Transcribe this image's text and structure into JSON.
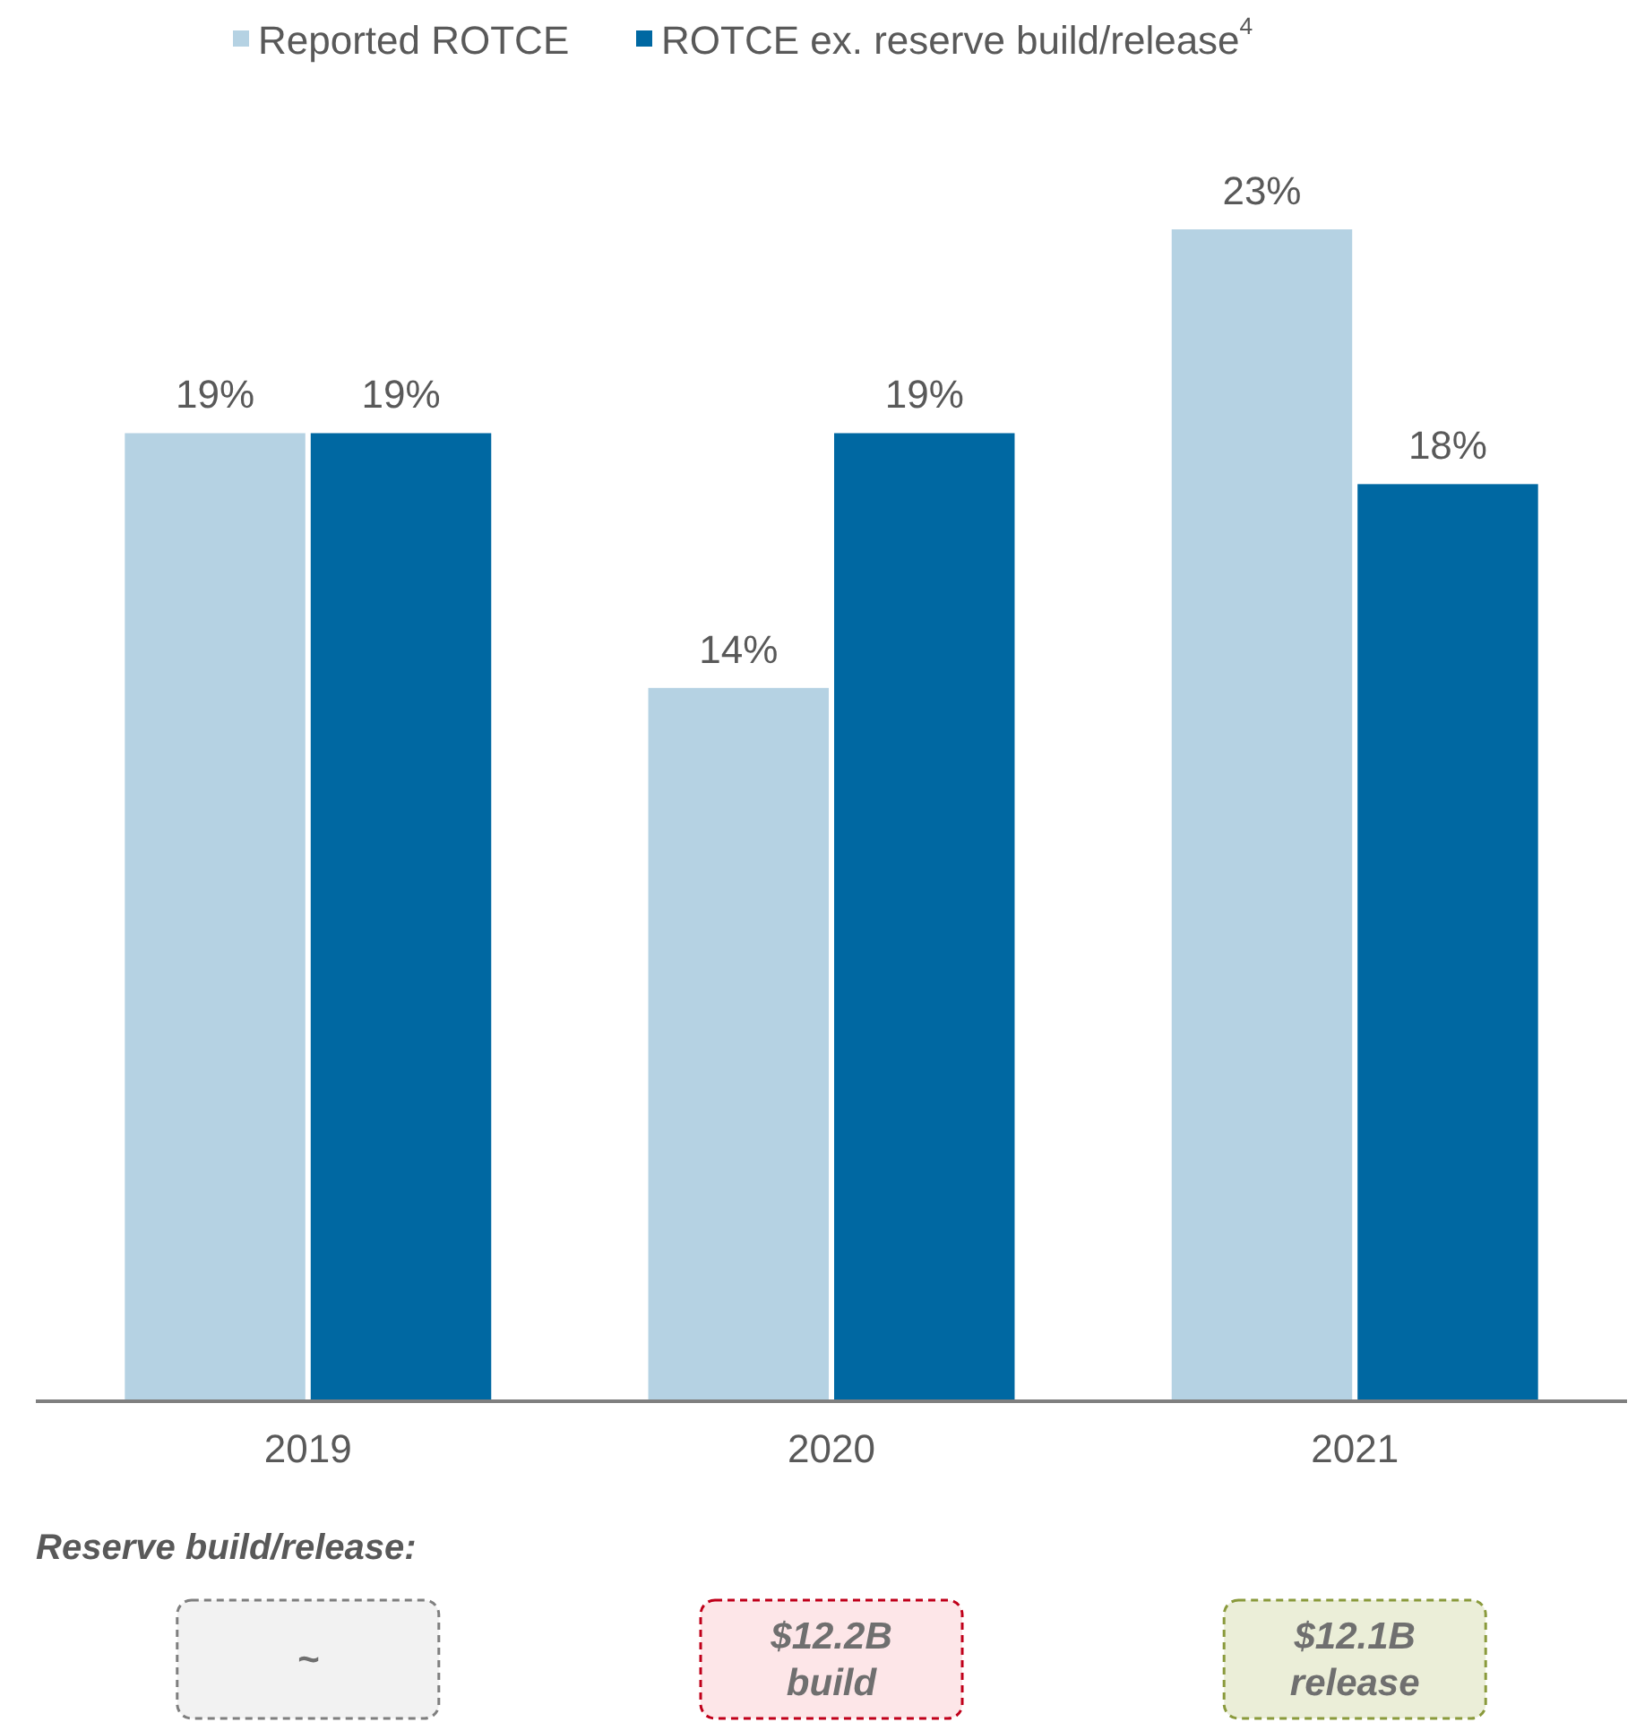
{
  "chart_data": {
    "type": "bar",
    "categories": [
      "2019",
      "2020",
      "2021"
    ],
    "series": [
      {
        "name": "Reported ROTCE",
        "color": "#b5d2e3",
        "values": [
          19,
          14,
          23
        ],
        "value_labels": [
          "19%",
          "14%",
          "23%"
        ]
      },
      {
        "name": "ROTCE ex. reserve build/release$^{4}$",
        "color": "#0068a2",
        "values": [
          19,
          19,
          18
        ],
        "value_labels": [
          "19%",
          "19%",
          "18%"
        ]
      }
    ],
    "legend": "top",
    "annotations": [
      "Reserve build/release:",
      "~",
      "$12.2B build",
      "$12.1B release"
    ]
  }
}
